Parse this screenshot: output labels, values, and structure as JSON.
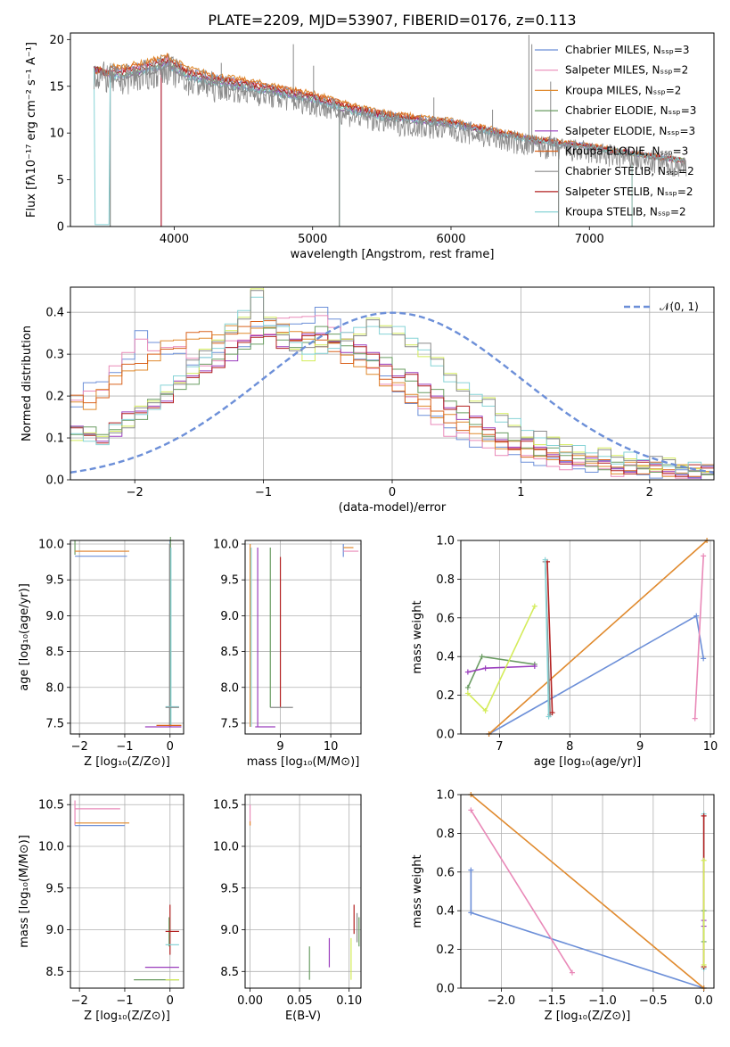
{
  "colors": [
    "#6c8fd8",
    "#e989b8",
    "#e08a2e",
    "#6a9c62",
    "#9a3dbd",
    "#d9631e",
    "#8a8a8a",
    "#b32020",
    "#86d3d6"
  ],
  "chart_data": [
    {
      "id": "spectrum",
      "type": "line",
      "title": "PLATE=2209, MJD=53907, FIBERID=0176, z=0.113",
      "xlabel": "wavelength [Angstrom, rest frame]",
      "ylabel": "Flux [fλ10⁻¹⁷ erg cm⁻² s⁻¹ A⁻¹]",
      "xlim": [
        3250,
        7900
      ],
      "ylim": [
        0,
        20.7
      ],
      "xticks": [
        4000,
        5000,
        6000,
        7000
      ],
      "yticks": [
        0,
        5,
        10,
        15,
        20
      ],
      "grid": false,
      "legend_position": "upper-right",
      "legend": [
        "Chabrier MILES, Nₛₛₚ=3",
        "Salpeter MILES, Nₛₛₚ=2",
        "Kroupa MILES, Nₛₛₚ=2",
        "Chabrier ELODIE, Nₛₛₚ=3",
        "Salpeter ELODIE, Nₛₛₚ=3",
        "Kroupa ELODIE, Nₛₛₚ=3",
        "Chabrier STELIB, Nₛₛₚ=2",
        "Salpeter STELIB, Nₛₛₚ=2",
        "Kroupa STELIB, Nₛₛₚ=2"
      ],
      "continuum": [
        [
          3420,
          16.8
        ],
        [
          3600,
          16.2
        ],
        [
          3800,
          16.8
        ],
        [
          3950,
          17.5
        ],
        [
          4100,
          16.2
        ],
        [
          4300,
          15.5
        ],
        [
          4600,
          14.8
        ],
        [
          5000,
          13.7
        ],
        [
          5300,
          12.4
        ],
        [
          5600,
          11.6
        ],
        [
          6000,
          11.0
        ],
        [
          6300,
          10.1
        ],
        [
          6600,
          9.2
        ],
        [
          7000,
          8.5
        ],
        [
          7400,
          7.6
        ],
        [
          7700,
          7.0
        ]
      ],
      "emission_lines": [
        [
          4340,
          17.5
        ],
        [
          4861,
          19.5
        ],
        [
          5007,
          17.2
        ],
        [
          5876,
          13.8
        ],
        [
          6300,
          12.5
        ],
        [
          6563,
          20.5
        ],
        [
          6584,
          19.5
        ],
        [
          6720,
          15.5
        ]
      ],
      "model_drops": [
        3540,
        3910,
        5190,
        6780,
        7310
      ]
    },
    {
      "id": "residuals",
      "type": "line",
      "xlabel": "(data-model)/error",
      "ylabel": "Normed distribution",
      "xlim": [
        -2.5,
        2.5
      ],
      "ylim": [
        0,
        0.46
      ],
      "xticks": [
        -2,
        -1,
        0,
        1,
        2
      ],
      "yticks": [
        0.0,
        0.1,
        0.2,
        0.3,
        0.4
      ],
      "grid": true,
      "legend_position": "upper-right",
      "legend": [
        "𝒩(0, 1)"
      ],
      "bin_width": 0.1,
      "hist_groups": [
        {
          "colors": [
            "#6c8fd8",
            "#e989b8"
          ],
          "values": [
            0.19,
            0.22,
            0.23,
            0.26,
            0.3,
            0.34,
            0.32,
            0.3,
            0.31,
            0.29,
            0.28,
            0.3,
            0.32,
            0.33,
            0.35,
            0.36,
            0.37,
            0.38,
            0.39,
            0.4,
            0.38,
            0.34,
            0.3,
            0.27,
            0.24,
            0.21,
            0.19,
            0.17,
            0.14,
            0.12,
            0.1,
            0.09,
            0.08,
            0.07,
            0.06,
            0.05,
            0.05,
            0.04,
            0.04,
            0.03,
            0.03,
            0.03,
            0.02,
            0.02,
            0.02,
            0.02,
            0.02,
            0.02,
            0.01,
            0.01
          ]
        },
        {
          "colors": [
            "#e08a2e",
            "#d9631e"
          ],
          "values": [
            0.19,
            0.18,
            0.2,
            0.24,
            0.26,
            0.27,
            0.3,
            0.32,
            0.33,
            0.34,
            0.35,
            0.33,
            0.36,
            0.35,
            0.37,
            0.38,
            0.36,
            0.35,
            0.34,
            0.33,
            0.31,
            0.29,
            0.27,
            0.26,
            0.24,
            0.22,
            0.2,
            0.18,
            0.16,
            0.14,
            0.13,
            0.11,
            0.1,
            0.09,
            0.08,
            0.07,
            0.06,
            0.06,
            0.05,
            0.05,
            0.04,
            0.04,
            0.03,
            0.03,
            0.03,
            0.03,
            0.02,
            0.02,
            0.02,
            0.02
          ]
        },
        {
          "colors": [
            "#9a3dbd",
            "#6a9c62",
            "#b32020"
          ],
          "values": [
            0.12,
            0.11,
            0.1,
            0.12,
            0.15,
            0.16,
            0.18,
            0.2,
            0.22,
            0.24,
            0.26,
            0.28,
            0.3,
            0.32,
            0.34,
            0.35,
            0.33,
            0.32,
            0.34,
            0.35,
            0.34,
            0.32,
            0.31,
            0.3,
            0.28,
            0.26,
            0.24,
            0.22,
            0.2,
            0.18,
            0.16,
            0.14,
            0.12,
            0.1,
            0.09,
            0.08,
            0.07,
            0.06,
            0.05,
            0.05,
            0.04,
            0.04,
            0.03,
            0.03,
            0.03,
            0.03,
            0.02,
            0.02,
            0.02,
            0.02
          ]
        },
        {
          "colors": [
            "#d4ec5a",
            "#86d3d6",
            "#8a8a8a"
          ],
          "values": [
            0.11,
            0.1,
            0.1,
            0.12,
            0.14,
            0.16,
            0.18,
            0.21,
            0.24,
            0.27,
            0.3,
            0.33,
            0.36,
            0.4,
            0.44,
            0.38,
            0.35,
            0.32,
            0.3,
            0.31,
            0.33,
            0.34,
            0.36,
            0.37,
            0.36,
            0.35,
            0.33,
            0.31,
            0.28,
            0.25,
            0.22,
            0.2,
            0.18,
            0.15,
            0.13,
            0.11,
            0.1,
            0.09,
            0.08,
            0.07,
            0.06,
            0.06,
            0.05,
            0.05,
            0.04,
            0.04,
            0.04,
            0.03,
            0.03,
            0.03
          ]
        }
      ],
      "normal_curve": {
        "mean": 0,
        "sigma": 1,
        "color": "#6c8fd8"
      }
    },
    {
      "id": "age-vs-Z",
      "type": "line",
      "xlabel": "Z [log₁₀(Z/Z⊙)]",
      "ylabel": "age  [log₁₀(age/yr)]",
      "xlim": [
        -2.2,
        0.3
      ],
      "ylim": [
        7.35,
        10.05
      ],
      "xticks": [
        -2,
        -1,
        0
      ],
      "yticks": [
        7.5,
        8.0,
        8.5,
        9.0,
        9.5,
        10.0
      ],
      "grid": true,
      "segments": [
        {
          "c": 3,
          "d": "v",
          "x": -2.1,
          "a": 9.85,
          "b": 10.05
        },
        {
          "c": 1,
          "d": "h",
          "y": 9.9,
          "a": -2.1,
          "b": -0.95
        },
        {
          "c": 0,
          "d": "h",
          "y": 9.83,
          "a": -2.1,
          "b": -0.95
        },
        {
          "c": 2,
          "d": "h",
          "y": 9.9,
          "a": -2.1,
          "b": -0.9
        },
        {
          "c": 0,
          "d": "v",
          "x": 0,
          "a": 7.45,
          "b": 10.05
        },
        {
          "c": 3,
          "d": "v",
          "x": 0.01,
          "a": 7.45,
          "b": 10.1
        },
        {
          "c": 6,
          "d": "v",
          "x": -0.01,
          "a": 7.45,
          "b": 10.0
        },
        {
          "c": 8,
          "d": "v",
          "x": 0.02,
          "a": 7.45,
          "b": 9.95
        },
        {
          "c": 4,
          "d": "h",
          "y": 7.45,
          "a": -0.55,
          "b": 0.25
        },
        {
          "c": 5,
          "d": "h",
          "y": 7.47,
          "a": -0.3,
          "b": 0.25
        },
        {
          "c": 8,
          "d": "h",
          "y": 7.73,
          "a": -0.1,
          "b": 0.2
        },
        {
          "c": 6,
          "d": "h",
          "y": 7.72,
          "a": -0.1,
          "b": 0.2
        }
      ]
    },
    {
      "id": "age-vs-mass",
      "type": "line",
      "xlabel": "mass [log₁₀(M/M⊙)]",
      "ylabel": "",
      "xlim": [
        8.3,
        10.6
      ],
      "ylim": [
        7.35,
        10.05
      ],
      "xticks": [
        9,
        10
      ],
      "yticks": [
        7.5,
        8.0,
        8.5,
        9.0,
        9.5,
        10.0
      ],
      "grid": true,
      "segments": [
        {
          "c": 2,
          "d": "v",
          "x": 8.4,
          "a": 7.45,
          "b": 10.0
        },
        {
          "c": 8,
          "d": "v",
          "x": 8.42,
          "a": 7.45,
          "b": 9.95
        },
        {
          "c": 4,
          "d": "v",
          "x": 8.55,
          "a": 7.45,
          "b": 9.95
        },
        {
          "c": 3,
          "d": "v",
          "x": 8.8,
          "a": 7.72,
          "b": 9.95
        },
        {
          "c": 7,
          "d": "v",
          "x": 9.0,
          "a": 7.72,
          "b": 9.82
        },
        {
          "c": 6,
          "d": "h",
          "y": 7.72,
          "a": 8.8,
          "b": 9.25
        },
        {
          "c": 4,
          "d": "h",
          "y": 7.45,
          "a": 8.5,
          "b": 8.9
        },
        {
          "c": 0,
          "d": "v",
          "x": 10.25,
          "a": 9.82,
          "b": 10.0
        },
        {
          "c": 1,
          "d": "h",
          "y": 9.9,
          "a": 10.25,
          "b": 10.55
        },
        {
          "c": 2,
          "d": "h",
          "y": 9.95,
          "a": 10.25,
          "b": 10.45
        }
      ]
    },
    {
      "id": "weight-vs-age",
      "type": "line",
      "xlabel": "age  [log₁₀(age/yr)]",
      "ylabel": "mass weight",
      "xlim": [
        6.45,
        10.05
      ],
      "ylim": [
        0,
        1
      ],
      "xticks": [
        7,
        8,
        9,
        10
      ],
      "yticks": [
        0.0,
        0.2,
        0.4,
        0.6,
        0.8,
        1.0
      ],
      "grid": true,
      "lines": [
        {
          "c": 0,
          "pts": [
            [
              6.85,
              0.0
            ],
            [
              9.8,
              0.61
            ],
            [
              9.9,
              0.39
            ]
          ]
        },
        {
          "c": 2,
          "pts": [
            [
              6.85,
              0.0
            ],
            [
              9.95,
              1.0
            ]
          ]
        },
        {
          "c": 1,
          "pts": [
            [
              9.78,
              0.08
            ],
            [
              9.9,
              0.92
            ]
          ]
        },
        {
          "c": 3,
          "pts": [
            [
              6.55,
              0.24
            ],
            [
              6.75,
              0.4
            ],
            [
              7.5,
              0.36
            ]
          ]
        },
        {
          "c": 4,
          "pts": [
            [
              6.55,
              0.32
            ],
            [
              6.8,
              0.34
            ],
            [
              7.5,
              0.35
            ]
          ]
        },
        {
          "c": 9,
          "pts": [
            [
              6.55,
              0.21
            ],
            [
              6.8,
              0.12
            ],
            [
              7.5,
              0.66
            ]
          ]
        },
        {
          "c": 6,
          "pts": [
            [
              7.65,
              0.89
            ],
            [
              7.72,
              0.1
            ]
          ]
        },
        {
          "c": 7,
          "pts": [
            [
              7.68,
              0.89
            ],
            [
              7.75,
              0.11
            ]
          ]
        },
        {
          "c": 8,
          "pts": [
            [
              7.65,
              0.9
            ],
            [
              7.7,
              0.09
            ]
          ]
        }
      ]
    },
    {
      "id": "mass-vs-Z",
      "type": "line",
      "xlabel": "Z [log₁₀(Z/Z⊙)]",
      "ylabel": "mass [log₁₀(M/M⊙)]",
      "xlim": [
        -2.2,
        0.3
      ],
      "ylim": [
        8.3,
        10.62
      ],
      "xticks": [
        -2,
        -1,
        0
      ],
      "yticks": [
        8.5,
        9.0,
        9.5,
        10.0,
        10.5
      ],
      "grid": true,
      "segments": [
        {
          "c": 1,
          "d": "v",
          "x": -2.1,
          "a": 10.25,
          "b": 10.55
        },
        {
          "c": 1,
          "d": "h",
          "y": 10.45,
          "a": -2.1,
          "b": -1.1
        },
        {
          "c": 0,
          "d": "h",
          "y": 10.25,
          "a": -2.1,
          "b": -1.0
        },
        {
          "c": 2,
          "d": "h",
          "y": 10.28,
          "a": -2.1,
          "b": -0.9
        },
        {
          "c": 7,
          "d": "v",
          "x": 0.0,
          "a": 8.7,
          "b": 9.3
        },
        {
          "c": 3,
          "d": "v",
          "x": -0.02,
          "a": 8.8,
          "b": 9.15
        },
        {
          "c": 8,
          "d": "h",
          "y": 8.82,
          "a": -0.1,
          "b": 0.2
        },
        {
          "c": 4,
          "d": "h",
          "y": 8.55,
          "a": -0.55,
          "b": 0.2
        },
        {
          "c": 3,
          "d": "h",
          "y": 8.4,
          "a": -0.8,
          "b": 0.2
        },
        {
          "c": 9,
          "d": "h",
          "y": 8.4,
          "a": -0.1,
          "b": 0.2
        },
        {
          "c": 7,
          "d": "h",
          "y": 8.98,
          "a": -0.1,
          "b": 0.2
        }
      ]
    },
    {
      "id": "mass-vs-EBV",
      "type": "line",
      "xlabel": "E(B-V)",
      "ylabel": "",
      "xlim": [
        -0.005,
        0.112
      ],
      "ylim": [
        8.3,
        10.62
      ],
      "xticks": [
        0.0,
        0.05,
        0.1
      ],
      "tick_labels": [
        "0.00",
        "0.05",
        "0.10"
      ],
      "yticks": [
        8.5,
        9.0,
        9.5,
        10.0,
        10.5
      ],
      "grid": true,
      "segments": [
        {
          "c": 1,
          "d": "v",
          "x": 0.0,
          "a": 10.25,
          "b": 10.5
        },
        {
          "c": 2,
          "d": "v",
          "x": 0.0,
          "a": 10.25,
          "b": 10.3
        },
        {
          "c": 3,
          "d": "v",
          "x": 0.06,
          "a": 8.4,
          "b": 8.8
        },
        {
          "c": 4,
          "d": "v",
          "x": 0.08,
          "a": 8.55,
          "b": 8.9
        },
        {
          "c": 9,
          "d": "v",
          "x": 0.102,
          "a": 8.4,
          "b": 8.9
        },
        {
          "c": 7,
          "d": "v",
          "x": 0.105,
          "a": 8.95,
          "b": 9.3
        },
        {
          "c": 6,
          "d": "v",
          "x": 0.108,
          "a": 8.85,
          "b": 9.2
        },
        {
          "c": 3,
          "d": "v",
          "x": 0.11,
          "a": 8.8,
          "b": 9.15
        }
      ]
    },
    {
      "id": "weight-vs-Z",
      "type": "line",
      "xlabel": "Z [log₁₀(Z/Z⊙)]",
      "ylabel": "mass weight",
      "xlim": [
        -2.4,
        0.1
      ],
      "ylim": [
        0,
        1
      ],
      "xticks": [
        -2.0,
        -1.5,
        -1.0,
        -0.5,
        0.0
      ],
      "tick_labels": [
        "−2.0",
        "−1.5",
        "−1.0",
        "−0.5",
        "0.0"
      ],
      "yticks": [
        0.0,
        0.2,
        0.4,
        0.6,
        0.8,
        1.0
      ],
      "grid": true,
      "lines": [
        {
          "c": 0,
          "pts": [
            [
              -2.3,
              0.61
            ],
            [
              -2.3,
              0.39
            ],
            [
              0.0,
              0.0
            ]
          ]
        },
        {
          "c": 2,
          "pts": [
            [
              -2.3,
              1.0
            ],
            [
              0.0,
              0.0
            ]
          ]
        },
        {
          "c": 1,
          "pts": [
            [
              -2.3,
              0.92
            ],
            [
              -1.3,
              0.08
            ]
          ]
        },
        {
          "c": 8,
          "pts": [
            [
              0.0,
              0.9
            ],
            [
              0.0,
              0.1
            ]
          ]
        },
        {
          "c": 7,
          "pts": [
            [
              0.0,
              0.89
            ],
            [
              0.0,
              0.11
            ]
          ]
        },
        {
          "c": 4,
          "pts": [
            [
              0.0,
              0.35
            ],
            [
              0.0,
              0.32
            ]
          ]
        },
        {
          "c": 3,
          "pts": [
            [
              0.0,
              0.24
            ],
            [
              0.0,
              0.4
            ]
          ]
        },
        {
          "c": 9,
          "pts": [
            [
              0.0,
              0.66
            ],
            [
              0.0,
              0.12
            ]
          ]
        }
      ]
    }
  ]
}
